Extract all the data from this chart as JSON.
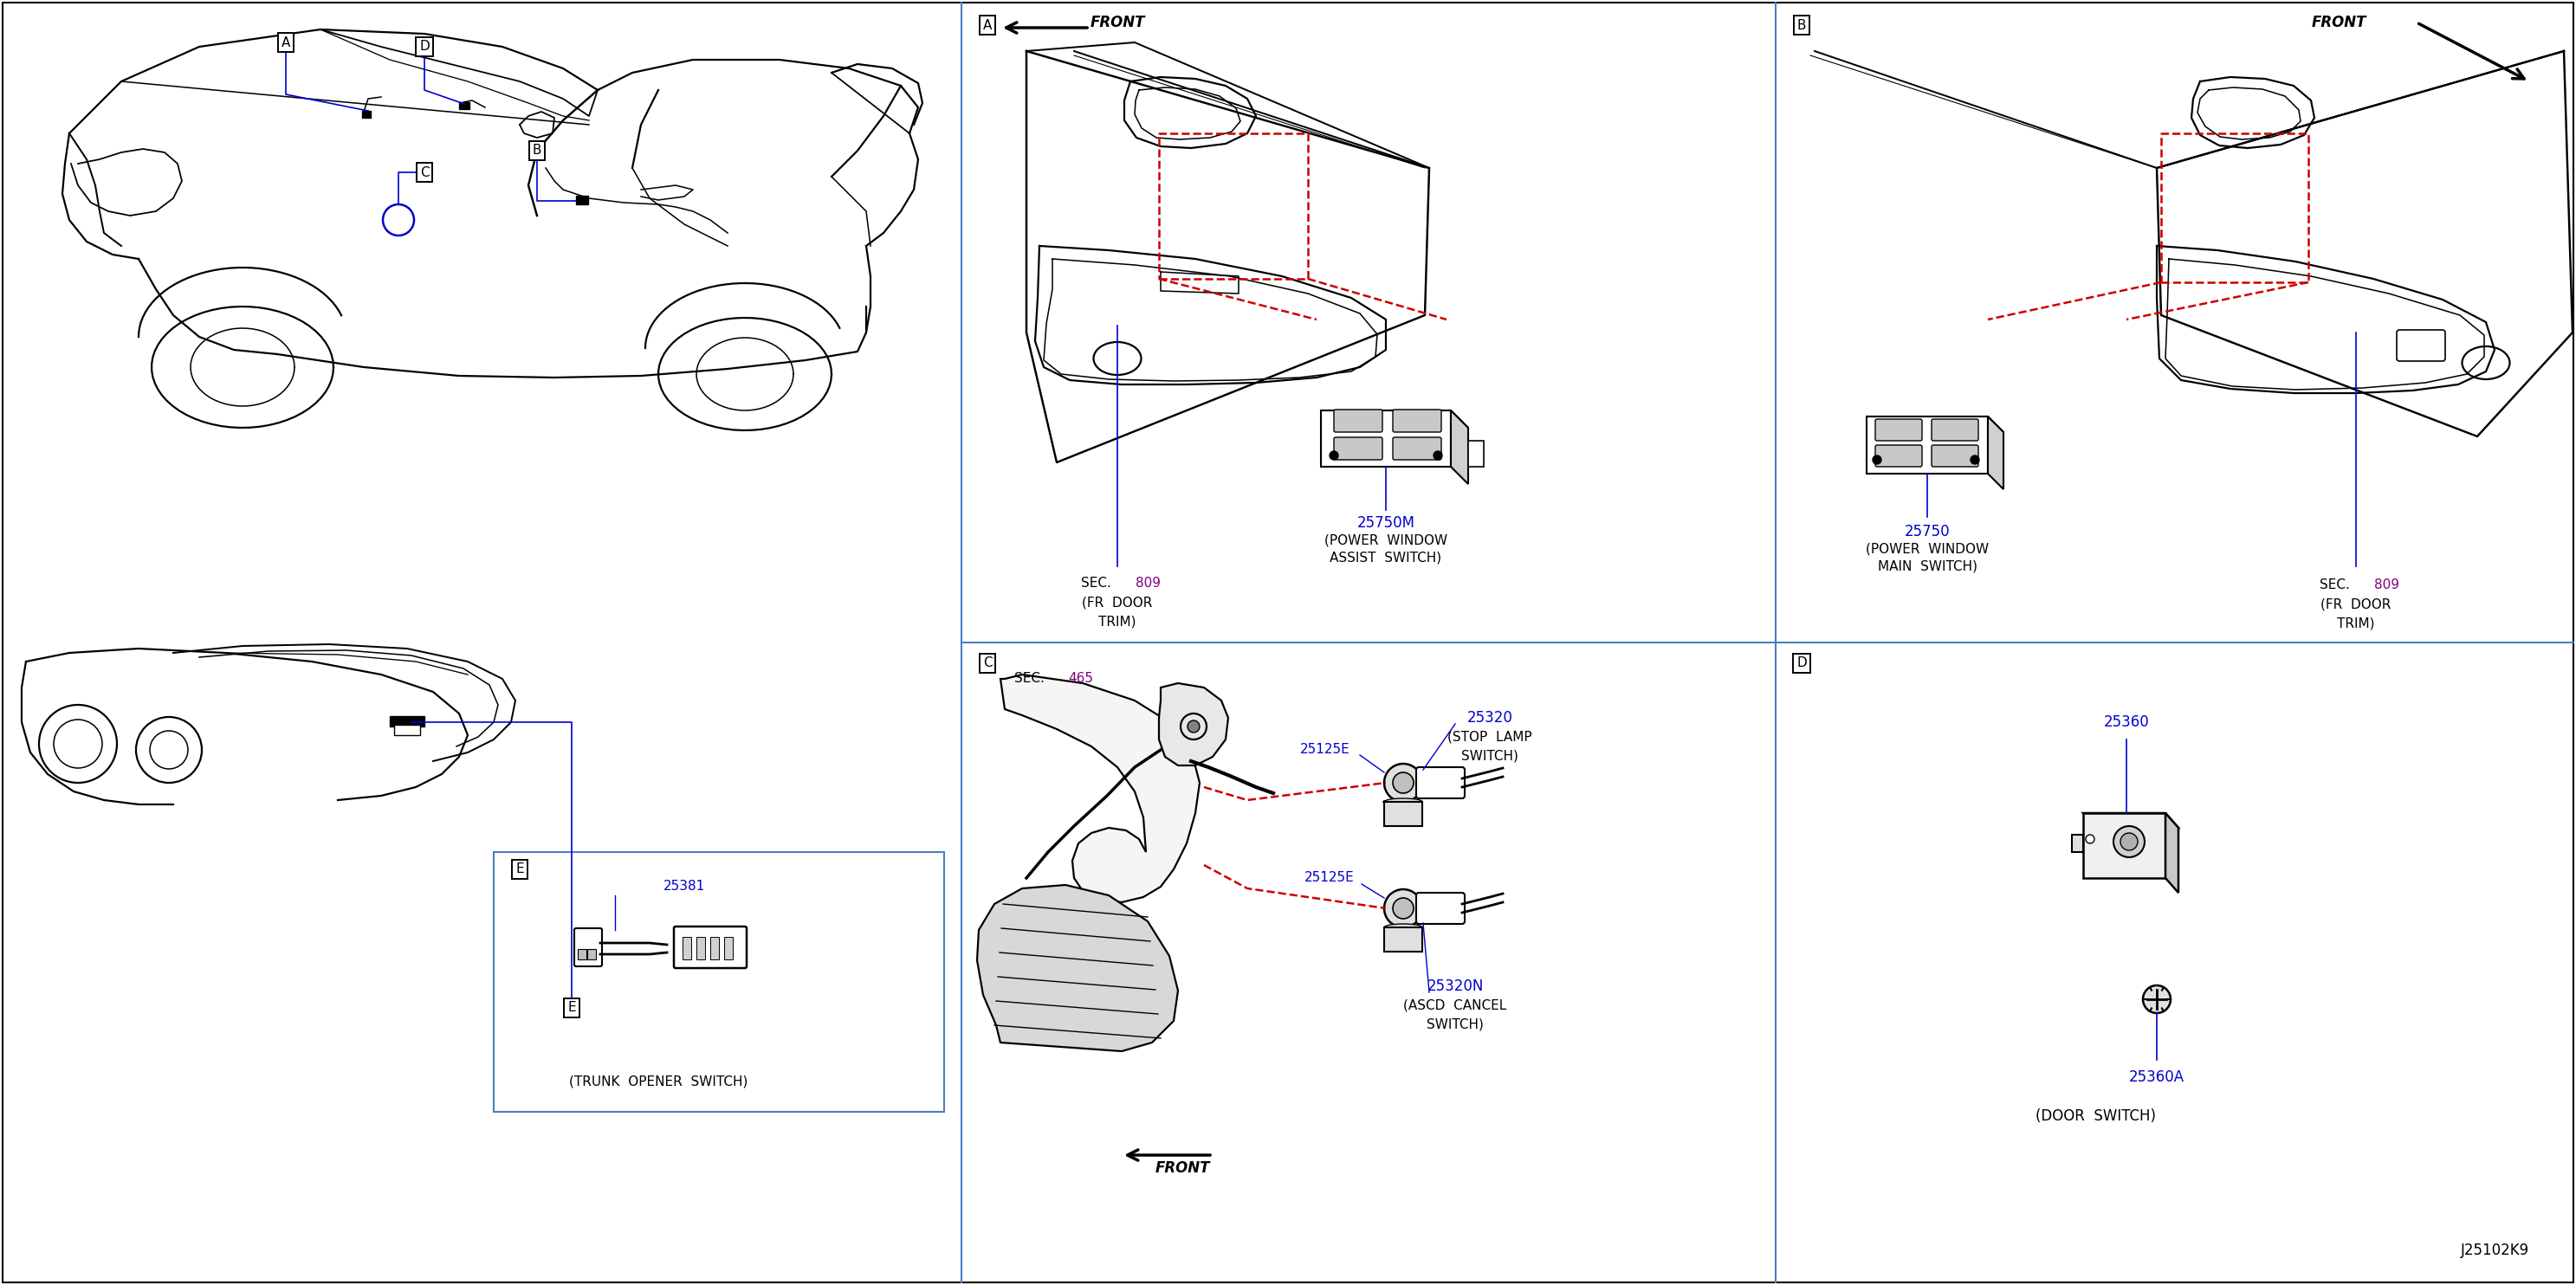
{
  "bg_color": "#ffffff",
  "line_color": "#000000",
  "blue_color": "#0000cc",
  "purple_color": "#800080",
  "red_dashed_color": "#cc0000",
  "panel_border_color": "#4a7fc1",
  "part_25750M": "25750M",
  "part_25750M_desc1": "(POWER  WINDOW",
  "part_25750M_desc2": "ASSIST  SWITCH)",
  "part_25750": "25750",
  "part_25750_desc1": "(POWER  WINDOW",
  "part_25750_desc2": "MAIN  SWITCH)",
  "sec_809_val": "809",
  "sec_809_desc1": "(FR  DOOR",
  "sec_809_desc2": "TRIM)",
  "part_25320": "25320",
  "part_25320_desc1": "(STOP  LAMP",
  "part_25320_desc2": "SWITCH)",
  "part_25125E": "25125E",
  "part_25320N": "25320N",
  "part_25320N_desc1": "(ASCD  CANCEL",
  "part_25320N_desc2": "SWITCH)",
  "sec_465_val": "465",
  "part_25360": "25360",
  "part_25360A": "25360A",
  "part_25360_desc1": "(DOOR  SWITCH)",
  "part_25381": "25381",
  "part_25381_desc1": "(TRUNK  OPENER  SWITCH)",
  "diagram_id": "J25102K9"
}
